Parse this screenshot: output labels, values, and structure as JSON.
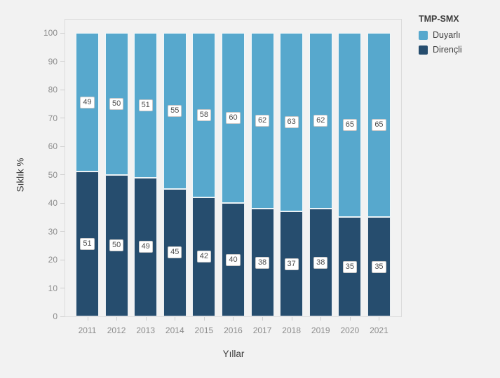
{
  "chart_data": {
    "type": "bar",
    "stacked": true,
    "orientation": "vertical",
    "categories": [
      "2011",
      "2012",
      "2013",
      "2014",
      "2015",
      "2016",
      "2017",
      "2018",
      "2019",
      "2020",
      "2021"
    ],
    "series": [
      {
        "name": "Duyarlı",
        "color": "#57a8cd",
        "position": "top",
        "values": [
          49,
          50,
          51,
          55,
          58,
          60,
          62,
          63,
          62,
          65,
          65
        ]
      },
      {
        "name": "Dirençli",
        "color": "#264d6e",
        "position": "bottom",
        "values": [
          51,
          50,
          49,
          45,
          42,
          40,
          38,
          37,
          38,
          35,
          35
        ]
      }
    ],
    "legend_title": "TMP-SMX",
    "legend_position": "top-right",
    "xlabel": "Yıllar",
    "ylabel": "Sıklık %",
    "ylim": [
      0,
      100
    ],
    "yticks": [
      0,
      10,
      20,
      30,
      40,
      50,
      60,
      70,
      80,
      90,
      100
    ],
    "grid": false,
    "value_labels": "inside-middle-boxed",
    "colors": {
      "page_background": "#f2f2f2",
      "plot_border": "#dbdbdb",
      "tick_text": "#8c8c8c",
      "axis_title_text": "#3d3d3d",
      "value_label_text": "#4d4d4d",
      "value_label_border": "#c9c9c9",
      "value_label_background": "#ffffff"
    }
  }
}
